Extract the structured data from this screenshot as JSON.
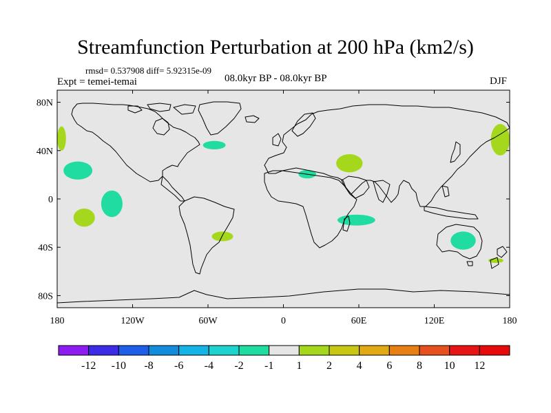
{
  "title": "Streamfunction Perturbation at 200 hPa (km2/s)",
  "stats": "rmsd= 0.537908 diff= 5.92315e-09",
  "experiment": "Expt = temei-temai",
  "period": "08.0kyr BP - 08.0kyr BP",
  "season": "DJF",
  "map": {
    "background": "#e6e6e6",
    "lat_ticks": [
      "80N",
      "40N",
      "0",
      "40S",
      "80S"
    ],
    "lon_ticks": [
      "180",
      "120W",
      "60W",
      "0",
      "60E",
      "120E",
      "180"
    ]
  },
  "anomalies": [
    {
      "id": "npac-w-edge",
      "level": 2,
      "lon": [
        -180,
        -173
      ],
      "lat": [
        40,
        60
      ],
      "color": "#a5d81c"
    },
    {
      "id": "npac-e-edge",
      "level": 2,
      "lon": [
        165,
        180
      ],
      "lat": [
        36,
        62
      ],
      "color": "#a5d81c"
    },
    {
      "id": "pac-20n",
      "level": -2,
      "lon": [
        -175,
        -152
      ],
      "lat": [
        16,
        31
      ],
      "color": "#20dca0"
    },
    {
      "id": "pac-eq",
      "level": -2,
      "lon": [
        -145,
        -128
      ],
      "lat": [
        -15,
        7
      ],
      "color": "#20dca0"
    },
    {
      "id": "pac-20s",
      "level": 2,
      "lon": [
        -167,
        -150
      ],
      "lat": [
        -23,
        -8
      ],
      "color": "#a5d81c"
    },
    {
      "id": "natl",
      "level": -2,
      "lon": [
        -64,
        -46
      ],
      "lat": [
        41,
        48
      ],
      "color": "#20dca0"
    },
    {
      "id": "sam",
      "level": 2,
      "lon": [
        -57,
        -40
      ],
      "lat": [
        -35,
        -27
      ],
      "color": "#a5d81c"
    },
    {
      "id": "sahara",
      "level": -2,
      "lon": [
        12,
        26
      ],
      "lat": [
        17,
        24
      ],
      "color": "#20dca0"
    },
    {
      "id": "arabia",
      "level": 2,
      "lon": [
        42,
        63
      ],
      "lat": [
        22,
        37
      ],
      "color": "#a5d81c"
    },
    {
      "id": "indian",
      "level": -2,
      "lon": [
        43,
        73
      ],
      "lat": [
        -22,
        -13
      ],
      "color": "#20dca0"
    },
    {
      "id": "australia",
      "level": -2,
      "lon": [
        133,
        153
      ],
      "lat": [
        -42,
        -27
      ],
      "color": "#20dca0"
    },
    {
      "id": "nz",
      "level": 2,
      "lon": [
        163,
        175
      ],
      "lat": [
        -53,
        -49
      ],
      "color": "#a5d81c"
    }
  ],
  "colorbar": {
    "labels": [
      "-12",
      "-10",
      "-8",
      "-6",
      "-4",
      "-2",
      "-1",
      "1",
      "2",
      "4",
      "6",
      "8",
      "10",
      "12"
    ],
    "colors": [
      "#8c1cf0",
      "#3c2ce6",
      "#1e5ee8",
      "#148cdc",
      "#14b4e6",
      "#1ed2cd",
      "#20dca0",
      "#e6e6e6",
      "#a5d81c",
      "#c8c814",
      "#e1aa14",
      "#e67f14",
      "#e6501e",
      "#e61414",
      "#e60a0a"
    ]
  }
}
